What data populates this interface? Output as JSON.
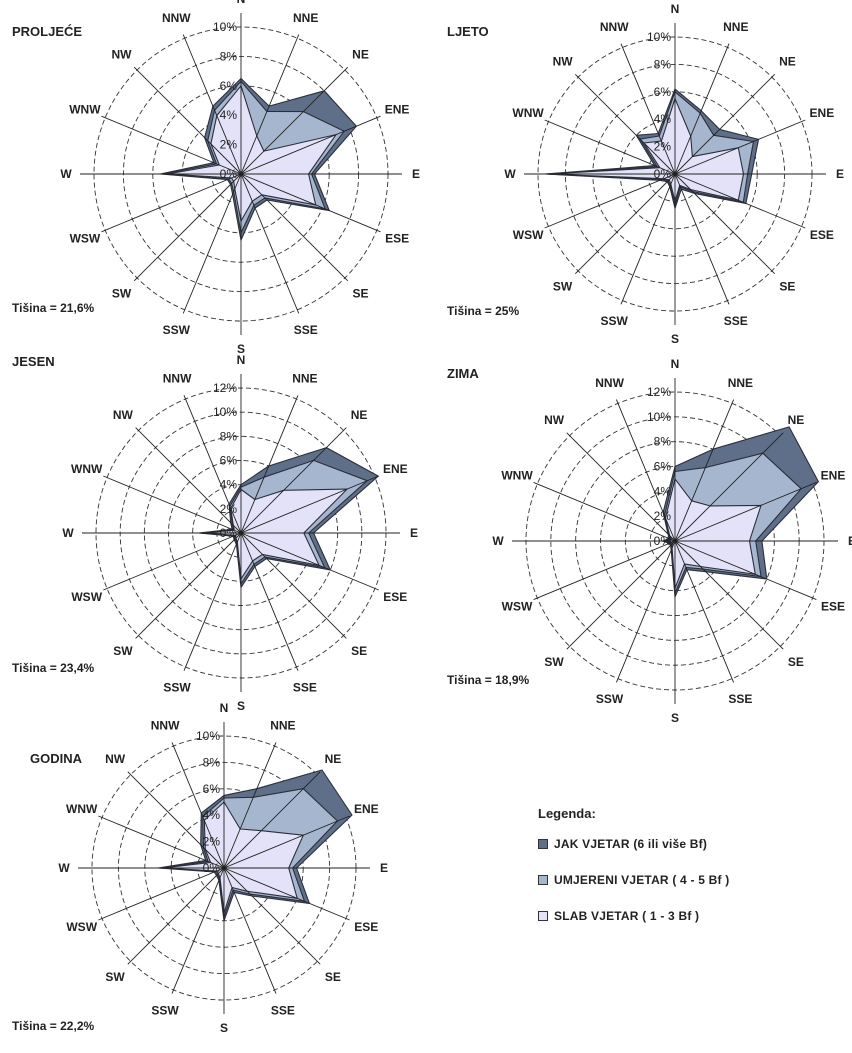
{
  "legend": {
    "title": "Legenda:",
    "items": [
      {
        "label": "JAK VJETAR (6 ili više Bf)",
        "color": "#5f6f8a"
      },
      {
        "label": "UMJERENI VJETAR ( 4 - 5 Bf )",
        "color": "#a7b6cf"
      },
      {
        "label": "SLAB VJETAR ( 1 - 3 Bf )",
        "color": "#e3e2f8"
      }
    ]
  },
  "chart_data": [
    {
      "type": "radar",
      "title": "PROLJEĆE",
      "calm": "Tišina = 21,6%",
      "directions": [
        "N",
        "NNE",
        "NE",
        "ENE",
        "E",
        "ESE",
        "SE",
        "SSE",
        "S",
        "SSW",
        "SW",
        "WSW",
        "W",
        "WNW",
        "NW",
        "NNW"
      ],
      "ticks": [
        "0%",
        "2%",
        "4%",
        "6%",
        "8%",
        "10%"
      ],
      "rmax": 10,
      "series": [
        {
          "name": "JAK VJETAR (6 ili više Bf)",
          "values": [
            6.5,
            5.0,
            8.0,
            8.5,
            5.0,
            6.5,
            2.5,
            2.5,
            4.5,
            1.5,
            1.0,
            1.0,
            5.5,
            2.0,
            3.5,
            5.0
          ]
        },
        {
          "name": "UMJERENI VJETAR ( 4 - 5 Bf )",
          "values": [
            6.3,
            4.6,
            6.0,
            7.6,
            4.8,
            6.2,
            2.3,
            2.3,
            4.0,
            1.3,
            0.9,
            0.9,
            5.3,
            1.8,
            3.2,
            4.7
          ]
        },
        {
          "name": "SLAB VJETAR ( 1 - 3 Bf )",
          "values": [
            6.0,
            2.8,
            2.2,
            7.0,
            4.6,
            5.5,
            2.0,
            2.0,
            3.2,
            1.1,
            0.7,
            0.7,
            5.0,
            1.6,
            2.9,
            4.3
          ]
        }
      ]
    },
    {
      "type": "radar",
      "title": "LJETO",
      "calm": "Tišina = 25%",
      "directions": [
        "N",
        "NNE",
        "NE",
        "ENE",
        "E",
        "ESE",
        "SE",
        "SSE",
        "S",
        "SSW",
        "SW",
        "WSW",
        "W",
        "WNW",
        "NW",
        "NNW"
      ],
      "ticks": [
        "0%",
        "2%",
        "4%",
        "6%",
        "8%",
        "10%"
      ],
      "rmax": 10,
      "series": [
        {
          "name": "JAK VJETAR (6 ili više Bf)",
          "values": [
            6.2,
            5.0,
            4.6,
            6.6,
            5.6,
            5.6,
            2.0,
            1.2,
            2.5,
            1.0,
            0.8,
            1.2,
            9.5,
            1.6,
            4.0,
            3.2
          ]
        },
        {
          "name": "UMJERENI VJETAR ( 4 - 5 Bf )",
          "values": [
            6.0,
            4.8,
            4.0,
            6.2,
            5.3,
            5.4,
            1.8,
            1.0,
            2.3,
            0.9,
            0.7,
            1.0,
            9.4,
            1.4,
            3.6,
            3.0
          ]
        },
        {
          "name": "SLAB VJETAR ( 1 - 3 Bf )",
          "values": [
            5.5,
            3.0,
            1.8,
            5.0,
            5.0,
            5.0,
            1.6,
            0.9,
            2.0,
            0.8,
            0.6,
            0.9,
            9.3,
            1.2,
            3.2,
            2.6
          ]
        }
      ]
    },
    {
      "type": "radar",
      "title": "JESEN",
      "calm": "Tišina = 23,4%",
      "directions": [
        "N",
        "NNE",
        "NE",
        "ENE",
        "E",
        "ESE",
        "SE",
        "SSE",
        "S",
        "SSW",
        "SW",
        "WSW",
        "W",
        "WNW",
        "NW",
        "NNW"
      ],
      "ticks": [
        "0%",
        "2%",
        "4%",
        "6%",
        "8%",
        "10%",
        "12%"
      ],
      "rmax": 12,
      "series": [
        {
          "name": "JAK VJETAR (6 ili više Bf)",
          "values": [
            4.0,
            6.0,
            10.0,
            12.3,
            6.0,
            8.0,
            3.0,
            3.0,
            4.5,
            1.0,
            0.8,
            0.7,
            3.5,
            0.8,
            1.2,
            2.6
          ]
        },
        {
          "name": "UMJERENI VJETAR ( 4 - 5 Bf )",
          "values": [
            3.8,
            5.0,
            8.5,
            11.3,
            5.6,
            7.5,
            2.8,
            2.8,
            4.2,
            0.9,
            0.7,
            0.6,
            3.4,
            0.7,
            1.0,
            2.4
          ]
        },
        {
          "name": "SLAB VJETAR ( 1 - 3 Bf )",
          "values": [
            3.6,
            3.0,
            5.0,
            9.5,
            5.2,
            7.0,
            2.5,
            2.5,
            3.8,
            0.8,
            0.6,
            0.5,
            3.2,
            0.6,
            0.9,
            2.2
          ]
        }
      ]
    },
    {
      "type": "radar",
      "title": "ZIMA",
      "calm": "Tišina = 18,9%",
      "directions": [
        "N",
        "NNE",
        "NE",
        "ENE",
        "E",
        "ESE",
        "SE",
        "SSE",
        "S",
        "SSW",
        "SW",
        "WSW",
        "W",
        "WNW",
        "NW",
        "NNW"
      ],
      "ticks": [
        "0%",
        "2%",
        "4%",
        "6%",
        "8%",
        "10%",
        "12%"
      ],
      "rmax": 12,
      "series": [
        {
          "name": "JAK VJETAR (6 ili više Bf)",
          "values": [
            6.0,
            8.0,
            13.0,
            12.5,
            7.0,
            8.0,
            3.5,
            2.5,
            4.5,
            0.8,
            0.5,
            0.5,
            1.0,
            0.5,
            0.8,
            2.5
          ]
        },
        {
          "name": "UMJERENI VJETAR ( 4 - 5 Bf )",
          "values": [
            5.6,
            6.4,
            10.0,
            11.0,
            6.5,
            7.5,
            3.2,
            2.3,
            4.2,
            0.7,
            0.4,
            0.4,
            0.9,
            0.4,
            0.7,
            2.2
          ]
        },
        {
          "name": "SLAB VJETAR ( 1 - 3 Bf )",
          "values": [
            5.0,
            3.5,
            4.0,
            7.5,
            6.0,
            7.0,
            2.9,
            2.0,
            3.8,
            0.6,
            0.3,
            0.3,
            0.8,
            0.3,
            0.6,
            2.0
          ]
        }
      ]
    },
    {
      "type": "radar",
      "title": "GODINA",
      "calm": "Tišina = 22,2%",
      "directions": [
        "N",
        "NNE",
        "NE",
        "ENE",
        "E",
        "ESE",
        "SE",
        "SSE",
        "S",
        "SSW",
        "SW",
        "WSW",
        "W",
        "WNW",
        "NW",
        "NNW"
      ],
      "ticks": [
        "0%",
        "2%",
        "4%",
        "6%",
        "8%",
        "10%"
      ],
      "rmax": 10,
      "series": [
        {
          "name": "JAK VJETAR (6 ili više Bf)",
          "values": [
            5.5,
            6.5,
            10.5,
            10.5,
            5.5,
            7.0,
            3.0,
            2.0,
            4.0,
            1.0,
            0.8,
            0.8,
            5.0,
            1.5,
            2.5,
            4.5
          ]
        },
        {
          "name": "UMJERENI VJETAR ( 4 - 5 Bf )",
          "values": [
            5.3,
            5.8,
            8.5,
            9.3,
            5.2,
            6.6,
            2.8,
            1.8,
            3.7,
            0.9,
            0.7,
            0.7,
            4.8,
            1.3,
            2.2,
            4.2
          ]
        },
        {
          "name": "SLAB VJETAR ( 1 - 3 Bf )",
          "values": [
            5.0,
            3.2,
            4.0,
            6.5,
            4.9,
            6.0,
            2.5,
            1.6,
            3.4,
            0.8,
            0.6,
            0.6,
            4.6,
            1.1,
            2.0,
            3.9
          ]
        }
      ]
    }
  ]
}
